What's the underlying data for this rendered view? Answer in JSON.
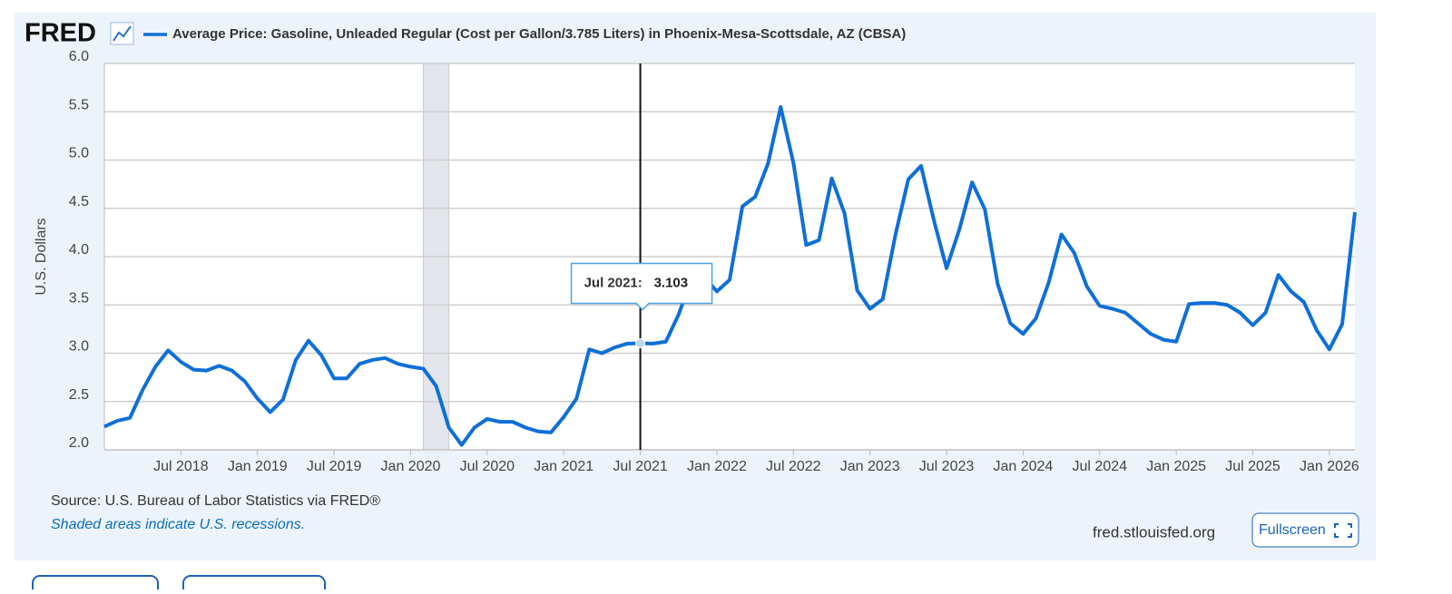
{
  "chart_data": {
    "type": "line",
    "logo": "FRED",
    "ylabel": "U.S. Dollars",
    "source": "Source: U.S. Bureau of Labor Statistics via FRED®",
    "note": "Shaded areas indicate U.S. recessions.",
    "site": "fred.stlouisfed.org",
    "button": "Fullscreen",
    "grid": true,
    "x": [
      "2018-01",
      "2018-02",
      "2018-03",
      "2018-04",
      "2018-05",
      "2018-06",
      "2018-07",
      "2018-08",
      "2018-09",
      "2018-10",
      "2018-11",
      "2018-12",
      "2019-01",
      "2019-02",
      "2019-03",
      "2019-04",
      "2019-05",
      "2019-06",
      "2019-07",
      "2019-08",
      "2019-09",
      "2019-10",
      "2019-11",
      "2019-12",
      "2020-01",
      "2020-02",
      "2020-03",
      "2020-04",
      "2020-05",
      "2020-06",
      "2020-07",
      "2020-08",
      "2020-09",
      "2020-10",
      "2020-11",
      "2020-12",
      "2021-01",
      "2021-02",
      "2021-03",
      "2021-04",
      "2021-05",
      "2021-06",
      "2021-07",
      "2021-08",
      "2021-09",
      "2021-10",
      "2021-11",
      "2021-12",
      "2022-01",
      "2022-02",
      "2022-03",
      "2022-04",
      "2022-05",
      "2022-06",
      "2022-07",
      "2022-08",
      "2022-09",
      "2022-10",
      "2022-11",
      "2022-12",
      "2023-01",
      "2023-02",
      "2023-03",
      "2023-04",
      "2023-05",
      "2023-06",
      "2023-07",
      "2023-08",
      "2023-09",
      "2023-10",
      "2023-11",
      "2023-12",
      "2024-01",
      "2024-02",
      "2024-03",
      "2024-04",
      "2024-05",
      "2024-06",
      "2024-07",
      "2024-08",
      "2024-09",
      "2024-10",
      "2024-11",
      "2024-12",
      "2025-01",
      "2025-02",
      "2025-03",
      "2025-04",
      "2025-05",
      "2025-06",
      "2025-07",
      "2025-08",
      "2025-09",
      "2025-10",
      "2025-11",
      "2025-12",
      "2026-01",
      "2026-02",
      "2026-03"
    ],
    "series": [
      {
        "name": "Average Price: Gasoline, Unleaded Regular (Cost per Gallon/3.785 Liters) in Phoenix-Mesa-Scottsdale, AZ (CBSA)",
        "color": "#0f6fd8",
        "values": [
          2.24,
          2.3,
          2.33,
          2.62,
          2.86,
          3.03,
          2.91,
          2.83,
          2.82,
          2.87,
          2.82,
          2.71,
          2.53,
          2.39,
          2.52,
          2.93,
          3.13,
          2.98,
          2.74,
          2.74,
          2.89,
          2.93,
          2.95,
          2.89,
          2.86,
          2.84,
          2.66,
          2.23,
          2.05,
          2.23,
          2.32,
          2.29,
          2.29,
          2.23,
          2.19,
          2.18,
          2.34,
          2.53,
          3.04,
          3.0,
          3.06,
          3.1,
          3.103,
          3.1,
          3.12,
          3.4,
          3.77,
          3.79,
          3.64,
          3.76,
          4.52,
          4.62,
          4.96,
          5.55,
          4.97,
          4.12,
          4.17,
          4.81,
          4.45,
          3.65,
          3.46,
          3.56,
          4.23,
          4.8,
          4.94,
          4.38,
          3.88,
          4.28,
          4.77,
          4.49,
          3.72,
          3.31,
          3.2,
          3.36,
          3.73,
          4.23,
          4.04,
          3.69,
          3.49,
          3.46,
          3.42,
          3.31,
          3.2,
          3.14,
          3.12,
          3.51,
          3.52,
          3.52,
          3.5,
          3.42,
          3.29,
          3.42,
          3.81,
          3.64,
          3.53,
          3.24,
          3.04,
          3.3,
          4.46
        ]
      }
    ],
    "ylim": [
      2,
      6
    ],
    "yticks": [
      {
        "value": 2,
        "label": "2.0"
      },
      {
        "value": 2.5,
        "label": "2.5"
      },
      {
        "value": 3,
        "label": "3.0"
      },
      {
        "value": 3.5,
        "label": "3.5"
      },
      {
        "value": 4,
        "label": "4.0"
      },
      {
        "value": 4.5,
        "label": "4.5"
      },
      {
        "value": 5,
        "label": "5.0"
      },
      {
        "value": 5.5,
        "label": "5.5"
      },
      {
        "value": 6,
        "label": "6.0"
      }
    ],
    "xticks": [
      {
        "value": "2018-07",
        "label": "Jul 2018"
      },
      {
        "value": "2019-01",
        "label": "Jan 2019"
      },
      {
        "value": "2019-07",
        "label": "Jul 2019"
      },
      {
        "value": "2020-01",
        "label": "Jan 2020"
      },
      {
        "value": "2020-07",
        "label": "Jul 2020"
      },
      {
        "value": "2021-01",
        "label": "Jan 2021"
      },
      {
        "value": "2021-07",
        "label": "Jul 2021"
      },
      {
        "value": "2022-01",
        "label": "Jan 2022"
      },
      {
        "value": "2022-07",
        "label": "Jul 2022"
      },
      {
        "value": "2023-01",
        "label": "Jan 2023"
      },
      {
        "value": "2023-07",
        "label": "Jul 2023"
      },
      {
        "value": "2024-01",
        "label": "Jan 2024"
      },
      {
        "value": "2024-07",
        "label": "Jul 2024"
      },
      {
        "value": "2025-01",
        "label": "Jan 2025"
      },
      {
        "value": "2025-07",
        "label": "Jul 2025"
      },
      {
        "value": "2026-01",
        "label": "Jan 2026"
      }
    ],
    "recessions": [
      {
        "start": "2020-02",
        "end": "2020-04"
      }
    ],
    "tooltip": {
      "date": "2021-07",
      "label": "Jul 2021:",
      "value": 3.103
    }
  }
}
